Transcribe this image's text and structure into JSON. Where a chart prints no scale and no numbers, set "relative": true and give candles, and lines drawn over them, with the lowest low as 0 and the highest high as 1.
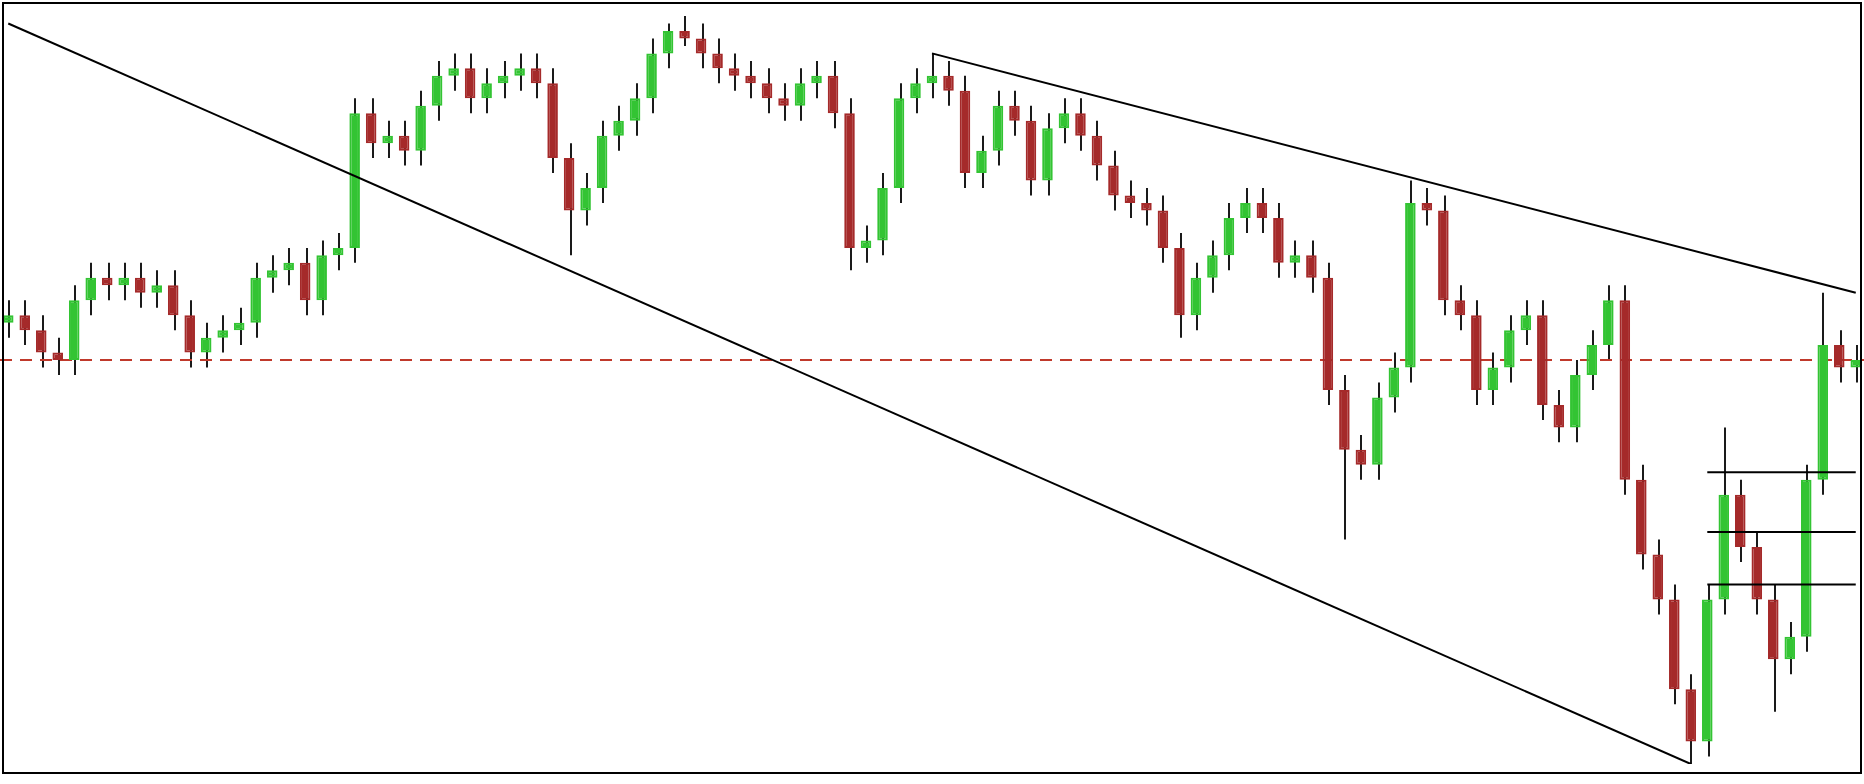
{
  "chart_data": {
    "type": "candlestick",
    "relative": true,
    "legend": false,
    "grid": false,
    "categories": [
      null,
      null,
      null,
      null,
      null,
      null,
      null,
      null,
      null,
      null,
      null,
      null,
      null,
      null,
      null,
      null,
      null,
      null,
      null,
      null,
      null,
      null,
      null,
      null,
      null,
      null,
      null,
      null,
      null,
      null,
      null,
      null,
      null,
      null,
      null,
      null,
      null,
      null,
      null,
      null,
      null,
      null,
      null,
      null,
      null,
      null,
      null,
      null,
      null,
      null,
      null,
      null,
      null,
      null,
      null,
      null,
      null,
      null,
      null,
      null,
      null,
      null,
      null,
      null,
      null,
      null,
      null,
      null,
      null,
      null,
      null,
      null,
      null,
      null,
      null,
      null,
      null,
      null,
      null,
      null,
      null,
      null,
      null,
      null,
      null,
      null,
      null,
      null,
      null,
      null,
      null,
      null,
      null,
      null,
      null,
      null,
      null,
      null,
      null,
      null,
      null,
      null,
      null,
      null,
      null,
      null,
      null,
      null,
      null,
      null,
      null,
      null,
      null
    ],
    "ohlc": [
      [
        0.59,
        0.62,
        0.57,
        0.6
      ],
      [
        0.6,
        0.62,
        0.56,
        0.58
      ],
      [
        0.58,
        0.6,
        0.53,
        0.55
      ],
      [
        0.55,
        0.57,
        0.52,
        0.54
      ],
      [
        0.54,
        0.64,
        0.52,
        0.62
      ],
      [
        0.62,
        0.67,
        0.6,
        0.65
      ],
      [
        0.65,
        0.67,
        0.62,
        0.64
      ],
      [
        0.64,
        0.67,
        0.62,
        0.65
      ],
      [
        0.65,
        0.67,
        0.61,
        0.63
      ],
      [
        0.63,
        0.66,
        0.61,
        0.64
      ],
      [
        0.64,
        0.66,
        0.58,
        0.6
      ],
      [
        0.6,
        0.62,
        0.53,
        0.55
      ],
      [
        0.55,
        0.59,
        0.53,
        0.57
      ],
      [
        0.57,
        0.6,
        0.55,
        0.58
      ],
      [
        0.58,
        0.61,
        0.56,
        0.59
      ],
      [
        0.59,
        0.67,
        0.57,
        0.65
      ],
      [
        0.65,
        0.68,
        0.63,
        0.66
      ],
      [
        0.66,
        0.69,
        0.64,
        0.67
      ],
      [
        0.67,
        0.69,
        0.6,
        0.62
      ],
      [
        0.62,
        0.7,
        0.6,
        0.68
      ],
      [
        0.68,
        0.71,
        0.66,
        0.69
      ],
      [
        0.69,
        0.89,
        0.67,
        0.87
      ],
      [
        0.87,
        0.89,
        0.81,
        0.83
      ],
      [
        0.83,
        0.86,
        0.81,
        0.84
      ],
      [
        0.84,
        0.86,
        0.8,
        0.82
      ],
      [
        0.82,
        0.9,
        0.8,
        0.88
      ],
      [
        0.88,
        0.94,
        0.86,
        0.92
      ],
      [
        0.92,
        0.95,
        0.9,
        0.93
      ],
      [
        0.93,
        0.95,
        0.87,
        0.89
      ],
      [
        0.89,
        0.93,
        0.87,
        0.91
      ],
      [
        0.91,
        0.94,
        0.89,
        0.92
      ],
      [
        0.92,
        0.95,
        0.9,
        0.93
      ],
      [
        0.93,
        0.95,
        0.89,
        0.91
      ],
      [
        0.91,
        0.93,
        0.79,
        0.81
      ],
      [
        0.81,
        0.83,
        0.68,
        0.74
      ],
      [
        0.74,
        0.79,
        0.72,
        0.77
      ],
      [
        0.77,
        0.86,
        0.75,
        0.84
      ],
      [
        0.84,
        0.88,
        0.82,
        0.86
      ],
      [
        0.86,
        0.91,
        0.84,
        0.89
      ],
      [
        0.89,
        0.97,
        0.87,
        0.95
      ],
      [
        0.95,
        0.99,
        0.93,
        0.98
      ],
      [
        0.98,
        1,
        0.96,
        0.97
      ],
      [
        0.97,
        0.99,
        0.93,
        0.95
      ],
      [
        0.95,
        0.97,
        0.91,
        0.93
      ],
      [
        0.93,
        0.95,
        0.9,
        0.92
      ],
      [
        0.92,
        0.94,
        0.89,
        0.91
      ],
      [
        0.91,
        0.93,
        0.87,
        0.89
      ],
      [
        0.89,
        0.91,
        0.86,
        0.88
      ],
      [
        0.88,
        0.93,
        0.86,
        0.91
      ],
      [
        0.91,
        0.94,
        0.89,
        0.92
      ],
      [
        0.92,
        0.94,
        0.85,
        0.87
      ],
      [
        0.87,
        0.89,
        0.66,
        0.69
      ],
      [
        0.69,
        0.72,
        0.67,
        0.7
      ],
      [
        0.7,
        0.79,
        0.68,
        0.77
      ],
      [
        0.77,
        0.91,
        0.75,
        0.89
      ],
      [
        0.89,
        0.93,
        0.87,
        0.91
      ],
      [
        0.91,
        0.95,
        0.89,
        0.92
      ],
      [
        0.92,
        0.94,
        0.88,
        0.9
      ],
      [
        0.9,
        0.92,
        0.77,
        0.79
      ],
      [
        0.79,
        0.84,
        0.77,
        0.82
      ],
      [
        0.82,
        0.9,
        0.8,
        0.88
      ],
      [
        0.88,
        0.9,
        0.84,
        0.86
      ],
      [
        0.86,
        0.88,
        0.76,
        0.78
      ],
      [
        0.78,
        0.87,
        0.76,
        0.85
      ],
      [
        0.85,
        0.89,
        0.83,
        0.87
      ],
      [
        0.87,
        0.89,
        0.82,
        0.84
      ],
      [
        0.84,
        0.86,
        0.78,
        0.8
      ],
      [
        0.8,
        0.82,
        0.74,
        0.76
      ],
      [
        0.76,
        0.78,
        0.73,
        0.75
      ],
      [
        0.75,
        0.77,
        0.72,
        0.74
      ],
      [
        0.74,
        0.76,
        0.67,
        0.69
      ],
      [
        0.69,
        0.71,
        0.57,
        0.6
      ],
      [
        0.6,
        0.67,
        0.58,
        0.65
      ],
      [
        0.65,
        0.7,
        0.63,
        0.68
      ],
      [
        0.68,
        0.75,
        0.66,
        0.73
      ],
      [
        0.73,
        0.77,
        0.71,
        0.75
      ],
      [
        0.75,
        0.77,
        0.71,
        0.73
      ],
      [
        0.73,
        0.75,
        0.65,
        0.67
      ],
      [
        0.67,
        0.7,
        0.65,
        0.68
      ],
      [
        0.68,
        0.7,
        0.63,
        0.65
      ],
      [
        0.65,
        0.67,
        0.48,
        0.5
      ],
      [
        0.5,
        0.52,
        0.3,
        0.42
      ],
      [
        0.42,
        0.44,
        0.38,
        0.4
      ],
      [
        0.4,
        0.51,
        0.38,
        0.49
      ],
      [
        0.49,
        0.55,
        0.47,
        0.53
      ],
      [
        0.53,
        0.78,
        0.51,
        0.75
      ],
      [
        0.75,
        0.77,
        0.72,
        0.74
      ],
      [
        0.74,
        0.76,
        0.6,
        0.62
      ],
      [
        0.62,
        0.64,
        0.58,
        0.6
      ],
      [
        0.6,
        0.62,
        0.48,
        0.5
      ],
      [
        0.5,
        0.55,
        0.48,
        0.53
      ],
      [
        0.53,
        0.6,
        0.51,
        0.58
      ],
      [
        0.58,
        0.62,
        0.56,
        0.6
      ],
      [
        0.6,
        0.62,
        0.46,
        0.48
      ],
      [
        0.48,
        0.5,
        0.43,
        0.45
      ],
      [
        0.45,
        0.54,
        0.43,
        0.52
      ],
      [
        0.52,
        0.58,
        0.5,
        0.56
      ],
      [
        0.56,
        0.64,
        0.54,
        0.62
      ],
      [
        0.62,
        0.64,
        0.36,
        0.38
      ],
      [
        0.38,
        0.4,
        0.26,
        0.28
      ],
      [
        0.28,
        0.3,
        0.2,
        0.22
      ],
      [
        0.22,
        0.24,
        0.08,
        0.1
      ],
      [
        0.1,
        0.12,
        0,
        0.03
      ],
      [
        0.03,
        0.24,
        0.01,
        0.22
      ],
      [
        0.22,
        0.45,
        0.2,
        0.36
      ],
      [
        0.36,
        0.38,
        0.27,
        0.29
      ],
      [
        0.29,
        0.31,
        0.2,
        0.22
      ],
      [
        0.22,
        0.24,
        0.07,
        0.14
      ],
      [
        0.14,
        0.19,
        0.12,
        0.17
      ],
      [
        0.17,
        0.4,
        0.15,
        0.38
      ],
      [
        0.38,
        0.63,
        0.36,
        0.56
      ],
      [
        0.56,
        0.58,
        0.51,
        0.53
      ],
      [
        0.53,
        0.56,
        0.51,
        0.54
      ]
    ],
    "colors": [
      "#33c433",
      "#a52a2a",
      "#a52a2a",
      "#a52a2a",
      "#33c433",
      "#33c433",
      "#a52a2a",
      "#33c433",
      "#a52a2a",
      "#33c433",
      "#a52a2a",
      "#a52a2a",
      "#33c433",
      "#33c433",
      "#33c433",
      "#33c433",
      "#33c433",
      "#33c433",
      "#a52a2a",
      "#33c433",
      "#33c433",
      "#33c433",
      "#a52a2a",
      "#33c433",
      "#a52a2a",
      "#33c433",
      "#33c433",
      "#33c433",
      "#a52a2a",
      "#33c433",
      "#33c433",
      "#33c433",
      "#a52a2a",
      "#a52a2a",
      "#a52a2a",
      "#33c433",
      "#33c433",
      "#33c433",
      "#33c433",
      "#33c433",
      "#33c433",
      "#a52a2a",
      "#a52a2a",
      "#a52a2a",
      "#a52a2a",
      "#a52a2a",
      "#a52a2a",
      "#a52a2a",
      "#33c433",
      "#33c433",
      "#a52a2a",
      "#a52a2a",
      "#33c433",
      "#33c433",
      "#33c433",
      "#33c433",
      "#33c433",
      "#a52a2a",
      "#a52a2a",
      "#33c433",
      "#33c433",
      "#a52a2a",
      "#a52a2a",
      "#33c433",
      "#33c433",
      "#a52a2a",
      "#a52a2a",
      "#a52a2a",
      "#a52a2a",
      "#a52a2a",
      "#a52a2a",
      "#a52a2a",
      "#33c433",
      "#33c433",
      "#33c433",
      "#33c433",
      "#a52a2a",
      "#a52a2a",
      "#33c433",
      "#a52a2a",
      "#a52a2a",
      "#a52a2a",
      "#a52a2a",
      "#33c433",
      "#33c433",
      "#33c433",
      "#a52a2a",
      "#a52a2a",
      "#a52a2a",
      "#a52a2a",
      "#33c433",
      "#33c433",
      "#33c433",
      "#a52a2a",
      "#a52a2a",
      "#33c433",
      "#33c433",
      "#33c433",
      "#a52a2a",
      "#a52a2a",
      "#a52a2a",
      "#a52a2a",
      "#a52a2a",
      "#33c433",
      "#33c433",
      "#a52a2a",
      "#a52a2a",
      "#a52a2a",
      "#33c433",
      "#33c433",
      "#33c433",
      "#a52a2a",
      "#33c433"
    ],
    "series": [
      {
        "type": "line",
        "color": "#000000",
        "values": [
          0.99,
          null,
          null,
          null,
          null,
          null,
          null,
          null,
          null,
          null,
          null,
          null,
          null,
          null,
          null,
          null,
          null,
          null,
          null,
          null,
          null,
          null,
          null,
          null,
          null,
          null,
          null,
          null,
          null,
          null,
          null,
          null,
          null,
          null,
          null,
          null,
          null,
          null,
          null,
          null,
          null,
          null,
          null,
          null,
          null,
          null,
          null,
          null,
          null,
          null,
          null,
          null,
          null,
          null,
          null,
          null,
          null,
          null,
          null,
          null,
          null,
          null,
          null,
          null,
          null,
          null,
          null,
          null,
          null,
          null,
          null,
          null,
          null,
          null,
          null,
          null,
          null,
          null,
          null,
          null,
          null,
          null,
          null,
          null,
          null,
          null,
          null,
          null,
          null,
          null,
          null,
          null,
          null,
          null,
          null,
          null,
          null,
          null,
          null,
          null,
          null,
          null,
          0,
          null,
          null,
          null,
          null,
          null,
          null,
          null,
          null,
          null,
          null
        ]
      },
      {
        "type": "line",
        "color": "#000000",
        "values": [
          null,
          null,
          null,
          null,
          null,
          null,
          null,
          null,
          null,
          null,
          null,
          null,
          null,
          null,
          null,
          null,
          null,
          null,
          null,
          null,
          null,
          null,
          null,
          null,
          null,
          null,
          null,
          null,
          null,
          null,
          null,
          null,
          null,
          null,
          null,
          null,
          null,
          null,
          null,
          null,
          null,
          null,
          null,
          null,
          null,
          null,
          null,
          null,
          null,
          null,
          null,
          null,
          null,
          null,
          null,
          null,
          0.95,
          null,
          null,
          null,
          null,
          null,
          null,
          null,
          null,
          null,
          null,
          null,
          null,
          null,
          null,
          null,
          null,
          null,
          null,
          null,
          null,
          null,
          null,
          null,
          null,
          null,
          null,
          null,
          null,
          null,
          null,
          null,
          null,
          null,
          null,
          null,
          null,
          null,
          null,
          null,
          null,
          null,
          null,
          null,
          null,
          null,
          null,
          null,
          null,
          null,
          null,
          null,
          null,
          null,
          null,
          null,
          0.63
        ]
      },
      {
        "type": "line",
        "color": "#000000",
        "values": [
          null,
          null,
          null,
          null,
          null,
          null,
          null,
          null,
          null,
          null,
          null,
          null,
          null,
          null,
          null,
          null,
          null,
          null,
          null,
          null,
          null,
          null,
          null,
          null,
          null,
          null,
          null,
          null,
          null,
          null,
          null,
          null,
          null,
          null,
          null,
          null,
          null,
          null,
          null,
          null,
          null,
          null,
          null,
          null,
          null,
          null,
          null,
          null,
          null,
          null,
          null,
          null,
          null,
          null,
          null,
          null,
          null,
          null,
          null,
          null,
          null,
          null,
          null,
          null,
          null,
          null,
          null,
          null,
          null,
          null,
          null,
          null,
          null,
          null,
          null,
          null,
          null,
          null,
          null,
          null,
          null,
          null,
          null,
          null,
          null,
          null,
          null,
          null,
          null,
          null,
          null,
          null,
          null,
          null,
          null,
          null,
          null,
          null,
          null,
          null,
          null,
          null,
          null,
          0.39,
          null,
          null,
          null,
          null,
          null,
          null,
          null,
          null,
          0.39
        ]
      },
      {
        "type": "line",
        "color": "#000000",
        "values": [
          null,
          null,
          null,
          null,
          null,
          null,
          null,
          null,
          null,
          null,
          null,
          null,
          null,
          null,
          null,
          null,
          null,
          null,
          null,
          null,
          null,
          null,
          null,
          null,
          null,
          null,
          null,
          null,
          null,
          null,
          null,
          null,
          null,
          null,
          null,
          null,
          null,
          null,
          null,
          null,
          null,
          null,
          null,
          null,
          null,
          null,
          null,
          null,
          null,
          null,
          null,
          null,
          null,
          null,
          null,
          null,
          null,
          null,
          null,
          null,
          null,
          null,
          null,
          null,
          null,
          null,
          null,
          null,
          null,
          null,
          null,
          null,
          null,
          null,
          null,
          null,
          null,
          null,
          null,
          null,
          null,
          null,
          null,
          null,
          null,
          null,
          null,
          null,
          null,
          null,
          null,
          null,
          null,
          null,
          null,
          null,
          null,
          null,
          null,
          null,
          null,
          null,
          null,
          0.31,
          null,
          null,
          null,
          null,
          null,
          null,
          null,
          null,
          0.31
        ]
      },
      {
        "type": "line",
        "color": "#000000",
        "values": [
          null,
          null,
          null,
          null,
          null,
          null,
          null,
          null,
          null,
          null,
          null,
          null,
          null,
          null,
          null,
          null,
          null,
          null,
          null,
          null,
          null,
          null,
          null,
          null,
          null,
          null,
          null,
          null,
          null,
          null,
          null,
          null,
          null,
          null,
          null,
          null,
          null,
          null,
          null,
          null,
          null,
          null,
          null,
          null,
          null,
          null,
          null,
          null,
          null,
          null,
          null,
          null,
          null,
          null,
          null,
          null,
          null,
          null,
          null,
          null,
          null,
          null,
          null,
          null,
          null,
          null,
          null,
          null,
          null,
          null,
          null,
          null,
          null,
          null,
          null,
          null,
          null,
          null,
          null,
          null,
          null,
          null,
          null,
          null,
          null,
          null,
          null,
          null,
          null,
          null,
          null,
          null,
          null,
          null,
          null,
          null,
          null,
          null,
          null,
          null,
          null,
          null,
          null,
          0.24,
          null,
          null,
          null,
          null,
          null,
          null,
          null,
          null,
          0.24
        ]
      }
    ],
    "ref_lines": [
      {
        "axis": "y",
        "value": 0.54,
        "color": "#c0392b",
        "line_style": "dashed"
      }
    ]
  }
}
